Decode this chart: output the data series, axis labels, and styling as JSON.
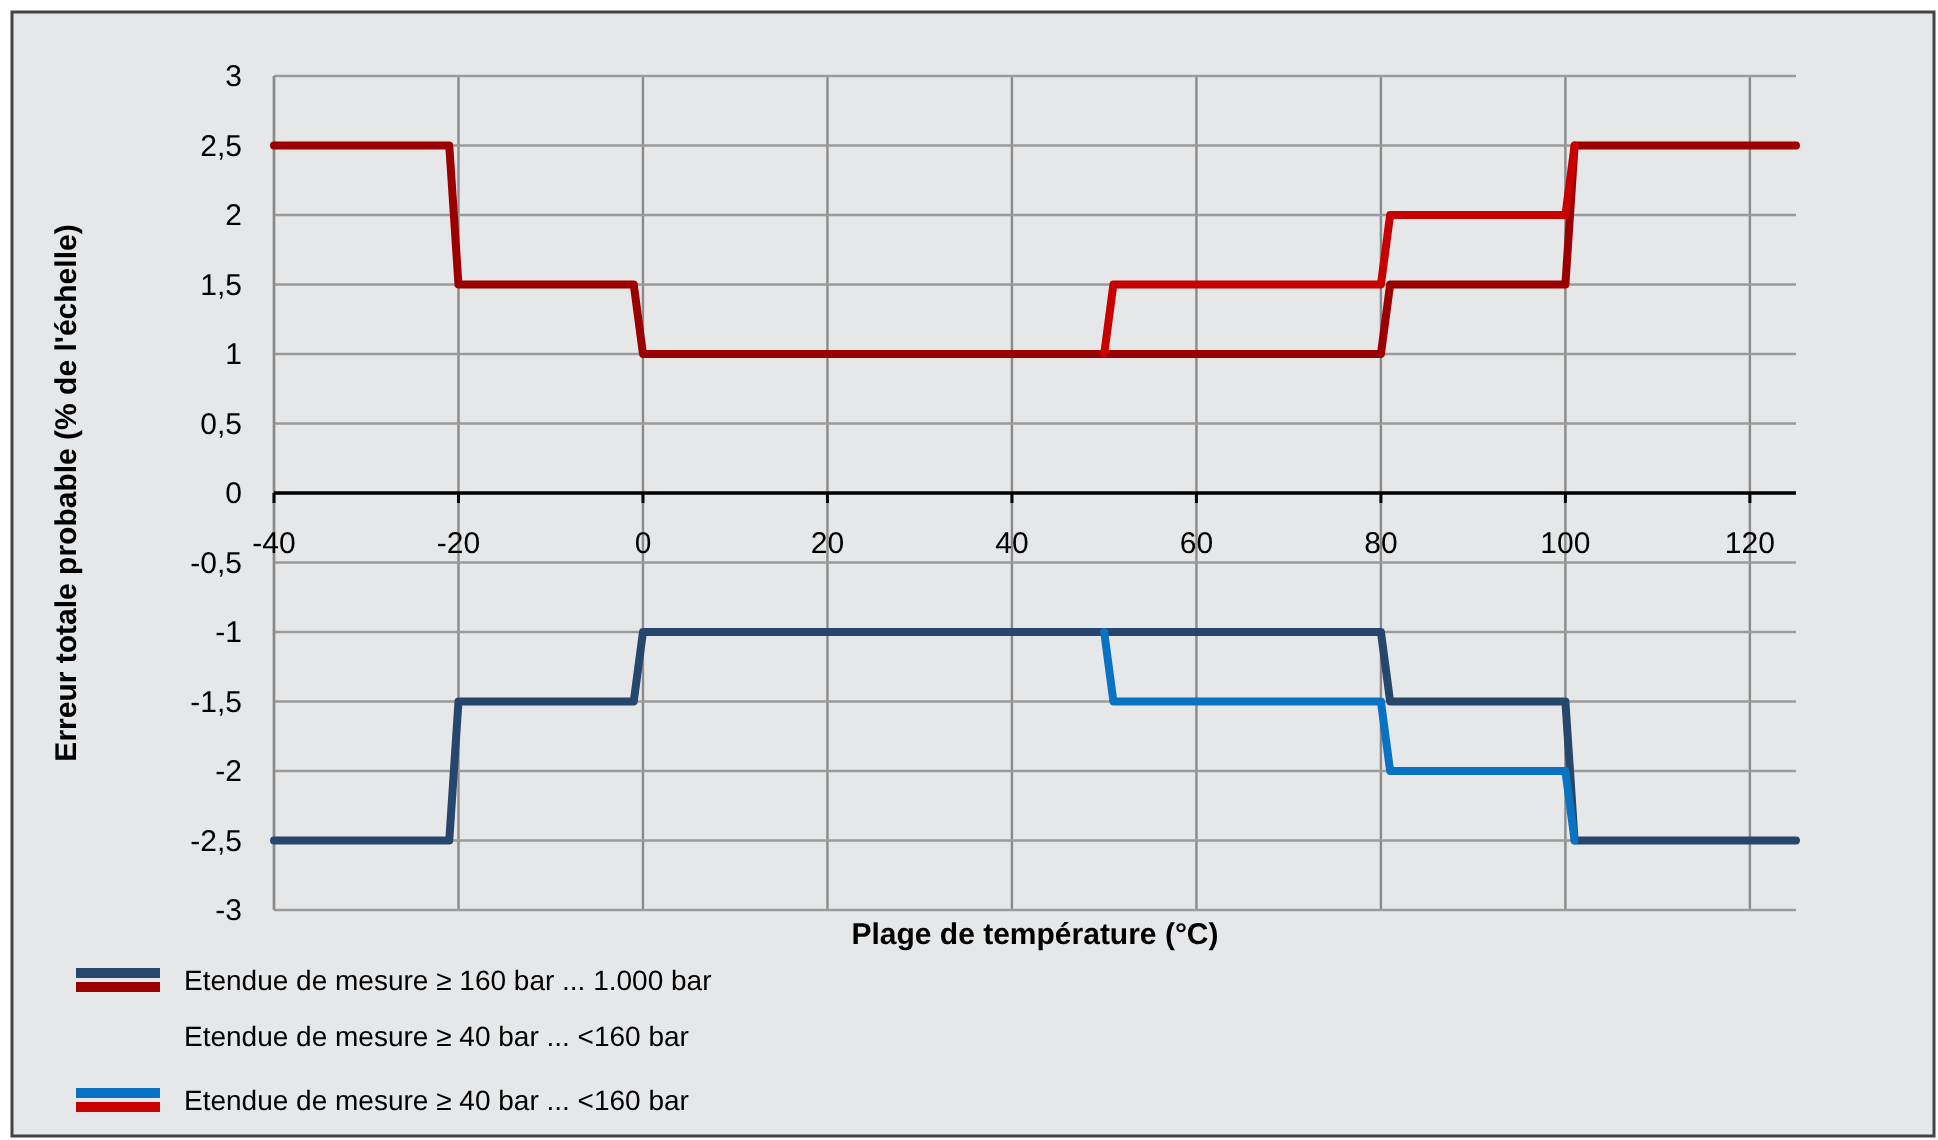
{
  "chart_data": {
    "type": "line",
    "xlabel": "Plage de température (°C)",
    "ylabel": "Erreur totale probable (% de l'échelle)",
    "xlim": [
      -40,
      125
    ],
    "xticks": [
      -40,
      -20,
      0,
      20,
      40,
      60,
      80,
      100,
      120
    ],
    "ylim": [
      -3,
      3
    ],
    "yticks": [
      {
        "value": -3,
        "label": "-3"
      },
      {
        "value": -2.5,
        "label": "-2,5"
      },
      {
        "value": -2,
        "label": "-2"
      },
      {
        "value": -1.5,
        "label": "-1,5"
      },
      {
        "value": -1,
        "label": "-1"
      },
      {
        "value": -0.5,
        "label": "-0,5"
      },
      {
        "value": 0,
        "label": "0"
      },
      {
        "value": 0.5,
        "label": "0,5"
      },
      {
        "value": 1,
        "label": "1"
      },
      {
        "value": 1.5,
        "label": "1,5"
      },
      {
        "value": 2,
        "label": "2"
      },
      {
        "value": 2.5,
        "label": "2,5"
      },
      {
        "value": 3,
        "label": "3"
      }
    ],
    "grid": true,
    "legend": "bottom",
    "marker": "none",
    "line_style": "solid",
    "series": [
      {
        "name": "Etendue de mesure ≥ 160 bar ... 1.000 bar",
        "color": "#27466b",
        "x": [
          -40,
          -21,
          -20,
          -1,
          0,
          80,
          81,
          100,
          101,
          125
        ],
        "values": [
          -2.5,
          -2.5,
          -1.5,
          -1.5,
          -1,
          -1,
          -1.5,
          -1.5,
          -2.5,
          -2.5
        ]
      },
      {
        "color": "#9b0000",
        "x": [
          -40,
          -21,
          -20,
          -1,
          0,
          80,
          81,
          100,
          101,
          125
        ],
        "values": [
          2.5,
          2.5,
          1.5,
          1.5,
          1,
          1,
          1.5,
          1.5,
          2.5,
          2.5
        ]
      },
      {
        "name": "Etendue de mesure ≥ 40 bar ... <160 bar",
        "color": "#0a72c2",
        "x": [
          50,
          51,
          80,
          81,
          100,
          101
        ],
        "values": [
          -1,
          -1.5,
          -1.5,
          -2,
          -2,
          -2.5
        ]
      },
      {
        "color": "#c80000",
        "x": [
          50,
          51,
          80,
          81,
          100,
          101
        ],
        "values": [
          1,
          1.5,
          1.5,
          2,
          2,
          2.5
        ]
      }
    ],
    "annotations": [
      "Etendue de mesure ≥ 40 bar ... <160 bar"
    ]
  }
}
